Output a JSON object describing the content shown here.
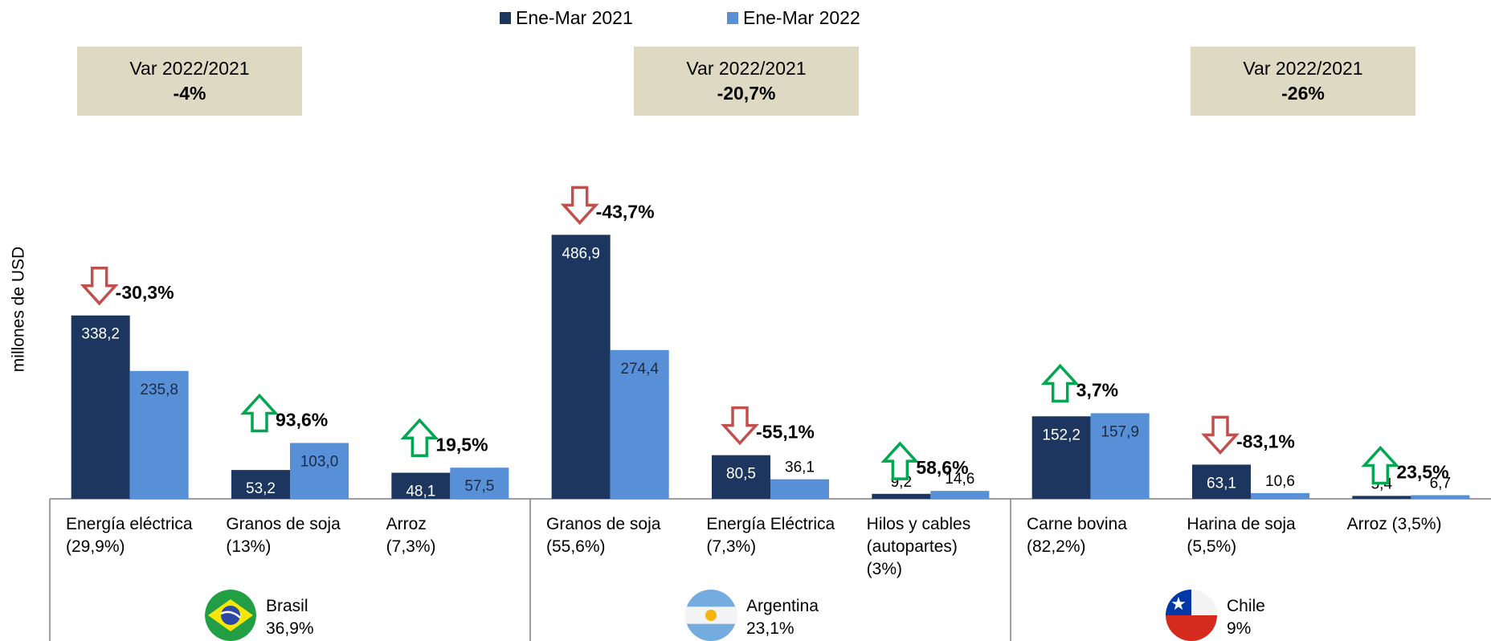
{
  "chart_data": {
    "type": "bar",
    "y_label": "millones de USD",
    "categories": [
      "Energía eléctrica\n(29,9%)",
      "Granos de soja\n(13%)",
      "Arroz\n(7,3%)",
      "Granos de soja\n(55,6%)",
      "Energía Eléctrica\n(7,3%)",
      "Hilos y cables\n(autopartes)\n(3%)",
      "Carne bovina\n(82,2%)",
      "Harina de soja\n(5,5%)",
      "Arroz (3,5%)"
    ],
    "series": [
      {
        "name": "Ene-Mar 2021",
        "color": "#1c365f",
        "values": [
          338.2,
          53.2,
          48.1,
          486.9,
          80.5,
          9.2,
          152.2,
          63.1,
          5.4
        ],
        "value_labels": [
          "338,2",
          "53,2",
          "48,1",
          "486,9",
          "80,5",
          "9,2",
          "152,2",
          "63,1",
          "5,4"
        ]
      },
      {
        "name": "Ene-Mar 2022",
        "color": "#5890d8",
        "values": [
          235.8,
          103.0,
          57.5,
          274.4,
          36.1,
          14.6,
          157.9,
          10.6,
          6.7
        ],
        "value_labels": [
          "235,8",
          "103,0",
          "57,5",
          "274,4",
          "36,1",
          "14,6",
          "157,9",
          "10,6",
          "6,7"
        ]
      }
    ],
    "changes": [
      -30.3,
      93.6,
      19.5,
      -43.7,
      -55.1,
      58.6,
      3.7,
      -83.1,
      23.5
    ],
    "change_labels": [
      "-30,3%",
      "93,6%",
      "19,5%",
      "-43,7%",
      "-55,1%",
      "58,6%",
      "3,7%",
      "-83,1%",
      "23,5%"
    ],
    "up_color": "#00a650",
    "down_color": "#c0504d",
    "groups": [
      {
        "name": "Brasil",
        "share": 36.9,
        "share_label": "36,9%",
        "box_title": "Var 2022/2021",
        "var": -4,
        "var_label": "-4%"
      },
      {
        "name": "Argentina",
        "share": 23.1,
        "share_label": "23,1%",
        "box_title": "Var 2022/2021",
        "var": -20.7,
        "var_label": "-20,7%"
      },
      {
        "name": "Chile",
        "share": 9,
        "share_label": "9%",
        "box_title": "Var 2022/2021",
        "var": -26,
        "var_label": "-26%"
      }
    ],
    "box_color": "#ddd9c3",
    "ylim": [
      0,
      600
    ]
  }
}
